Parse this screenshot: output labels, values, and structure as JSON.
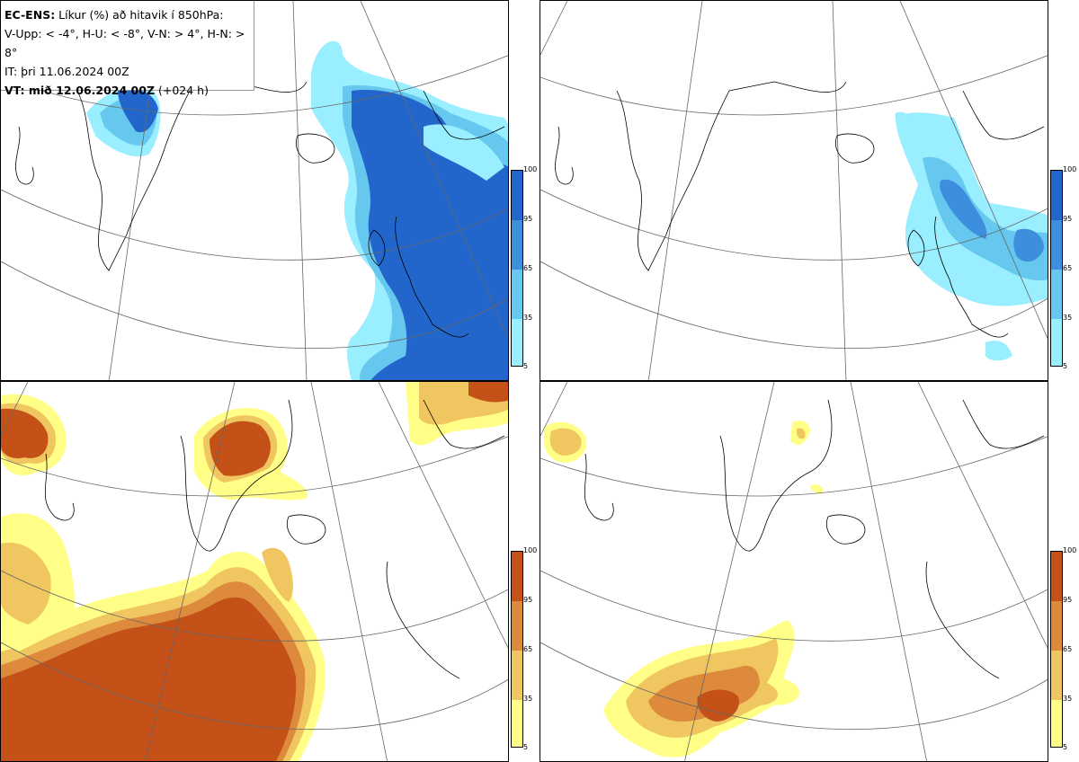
{
  "header": {
    "line1_bold": "EC-ENS:",
    "line1_rest": " Líkur (%) að hitavik í 850hPa:",
    "line2": "V-Upp: < -4°, H-U: < -8°, V-N: > 4°, H-N: > 8°",
    "line3": "IT: þri 11.06.2024 00Z",
    "line4_bold": "VT: mið 12.06.2024 00Z",
    "line4_rest": " (+024 h)"
  },
  "colorbars": {
    "ticks": [
      "100",
      "95",
      "65",
      "35",
      "5"
    ],
    "cold": {
      "colors": [
        "#2266cc",
        "#3d8fdd",
        "#66c8ee",
        "#99eeff"
      ]
    },
    "warm": {
      "colors": [
        "#c45218",
        "#dd8a3c",
        "#f0c660",
        "#ffff88"
      ]
    }
  },
  "panels": [
    {
      "name": "upper-left",
      "scheme": "cold",
      "threshold": "< -4°"
    },
    {
      "name": "upper-right",
      "scheme": "cold",
      "threshold": "< -8°"
    },
    {
      "name": "lower-left",
      "scheme": "warm",
      "threshold": "> 4°"
    },
    {
      "name": "lower-right",
      "scheme": "warm",
      "threshold": "> 8°"
    }
  ]
}
